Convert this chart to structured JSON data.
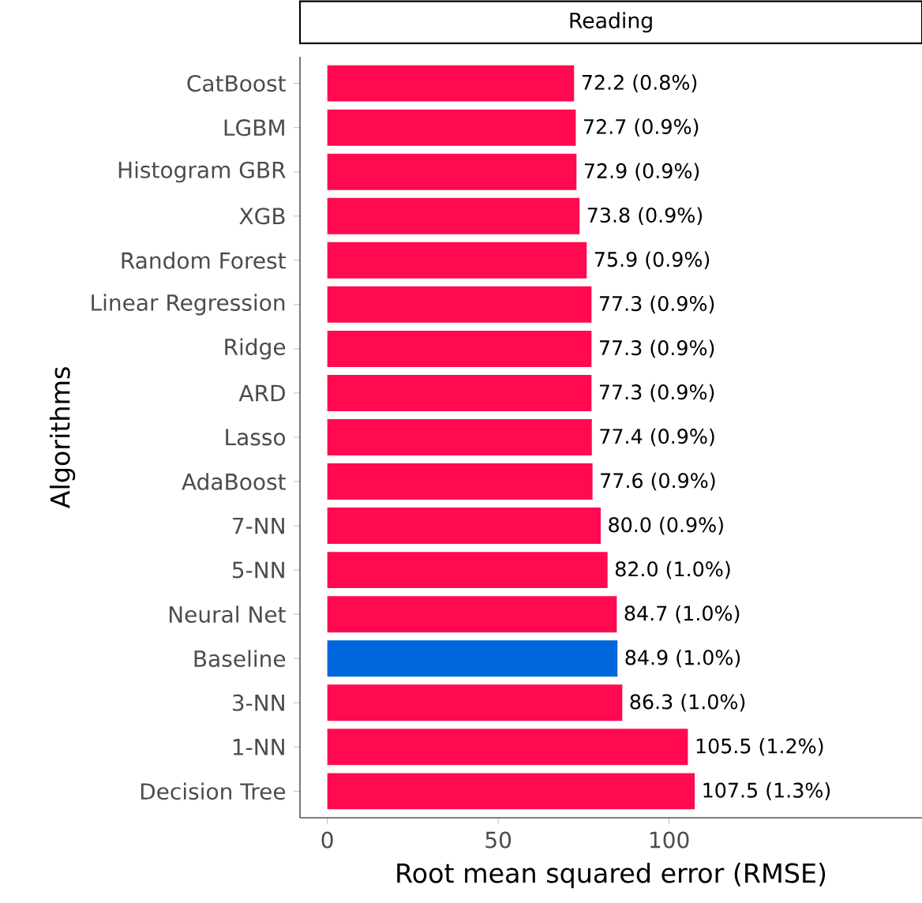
{
  "chart_data": {
    "type": "bar",
    "orientation": "horizontal",
    "title": "Reading",
    "xlabel": "Root mean squared error (RMSE)",
    "ylabel": "Algorithms",
    "categories": [
      "CatBoost",
      "LGBM",
      "Histogram GBR",
      "XGB",
      "Random Forest",
      "Linear Regression",
      "Ridge",
      "ARD",
      "Lasso",
      "AdaBoost",
      "7-NN",
      "5-NN",
      "Neural Net",
      "Baseline",
      "3-NN",
      "1-NN",
      "Decision Tree"
    ],
    "values": [
      72.2,
      72.7,
      72.9,
      73.8,
      75.9,
      77.3,
      77.3,
      77.3,
      77.4,
      77.6,
      80.0,
      82.0,
      84.7,
      84.9,
      86.3,
      105.5,
      107.5
    ],
    "colors": [
      "#ff0a50",
      "#ff0a50",
      "#ff0a50",
      "#ff0a50",
      "#ff0a50",
      "#ff0a50",
      "#ff0a50",
      "#ff0a50",
      "#ff0a50",
      "#ff0a50",
      "#ff0a50",
      "#ff0a50",
      "#ff0a50",
      "#0066dd",
      "#ff0a50",
      "#ff0a50",
      "#ff0a50"
    ],
    "value_labels": [
      "72.2 (0.8%)",
      "72.7 (0.9%)",
      "72.9 (0.9%)",
      "73.8 (0.9%)",
      "75.9 (0.9%)",
      "77.3 (0.9%)",
      "77.3 (0.9%)",
      "77.3 (0.9%)",
      "77.4 (0.9%)",
      "77.6 (0.9%)",
      "80.0 (0.9%)",
      "82.0 (1.0%)",
      "84.7 (1.0%)",
      "84.9 (1.0%)",
      "86.3 (1.0%)",
      "105.5 (1.2%)",
      "107.5 (1.3%)"
    ],
    "xlim": [
      -8,
      174
    ],
    "xticks": [
      0,
      50,
      100
    ]
  }
}
